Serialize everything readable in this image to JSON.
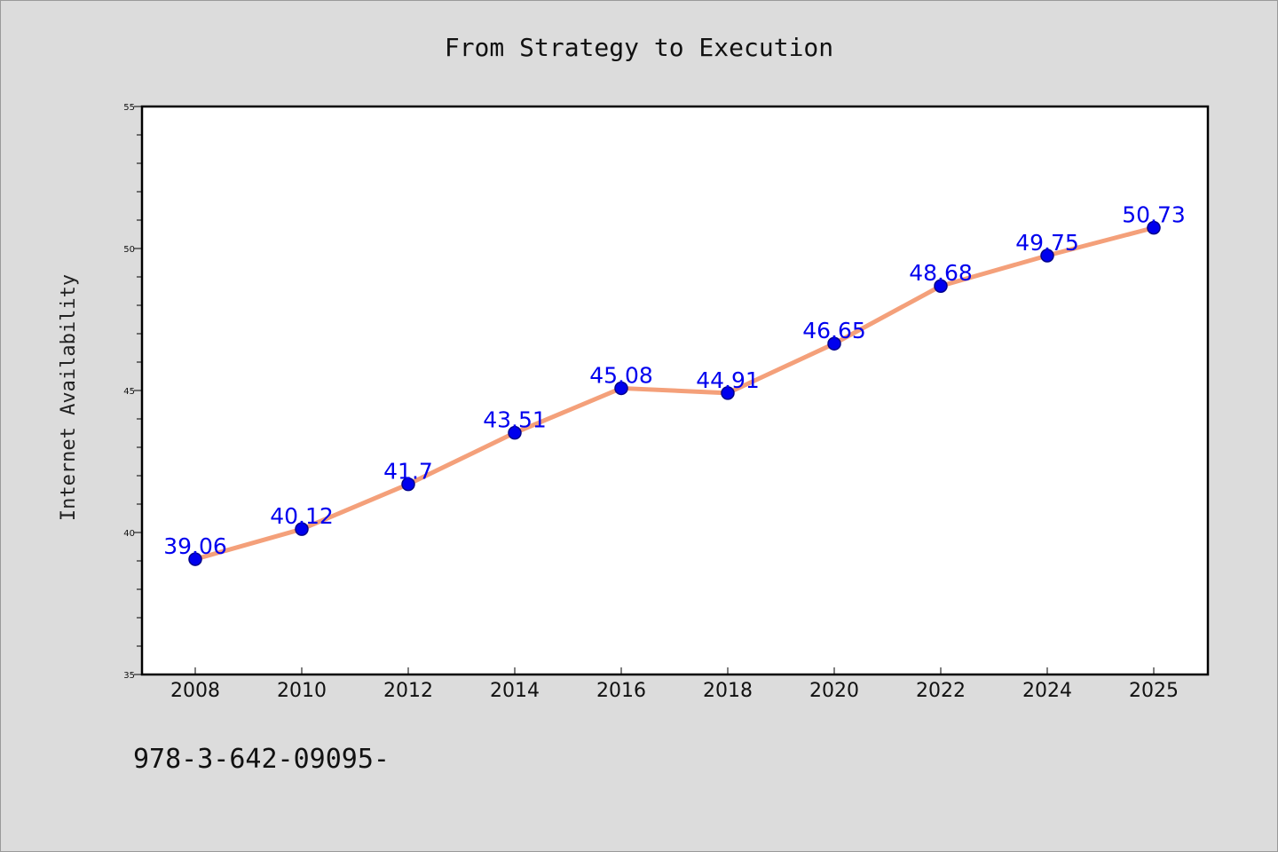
{
  "chart_data": {
    "type": "line",
    "title": "From Strategy to Execution",
    "ylabel": "Internet Availability",
    "xlabel": "",
    "x": [
      "2008",
      "2010",
      "2012",
      "2014",
      "2016",
      "2018",
      "2020",
      "2022",
      "2024",
      "2025"
    ],
    "series": [
      {
        "values": [
          39.06,
          40.12,
          41.7,
          43.51,
          45.08,
          44.91,
          46.65,
          48.68,
          49.75,
          50.73
        ],
        "data_labels": [
          "39.06",
          "40.12",
          "41.7",
          "43.51",
          "45.08",
          "44.91",
          "46.65",
          "48.68",
          "49.75",
          "50.73"
        ]
      }
    ],
    "ylim": [
      35,
      55
    ],
    "yticks": [
      "35",
      "40",
      "45",
      "50",
      "55"
    ],
    "grid": false,
    "legend": "none",
    "colors": {
      "line": "#f4a07a",
      "marker": "#0000ee",
      "marker_edge": "#00008b",
      "data_label": "#0000ee",
      "plot_background": "#ffffff",
      "page_background": "#dcdcdc"
    }
  },
  "footer": {
    "text": "978-3-642-09095-"
  }
}
